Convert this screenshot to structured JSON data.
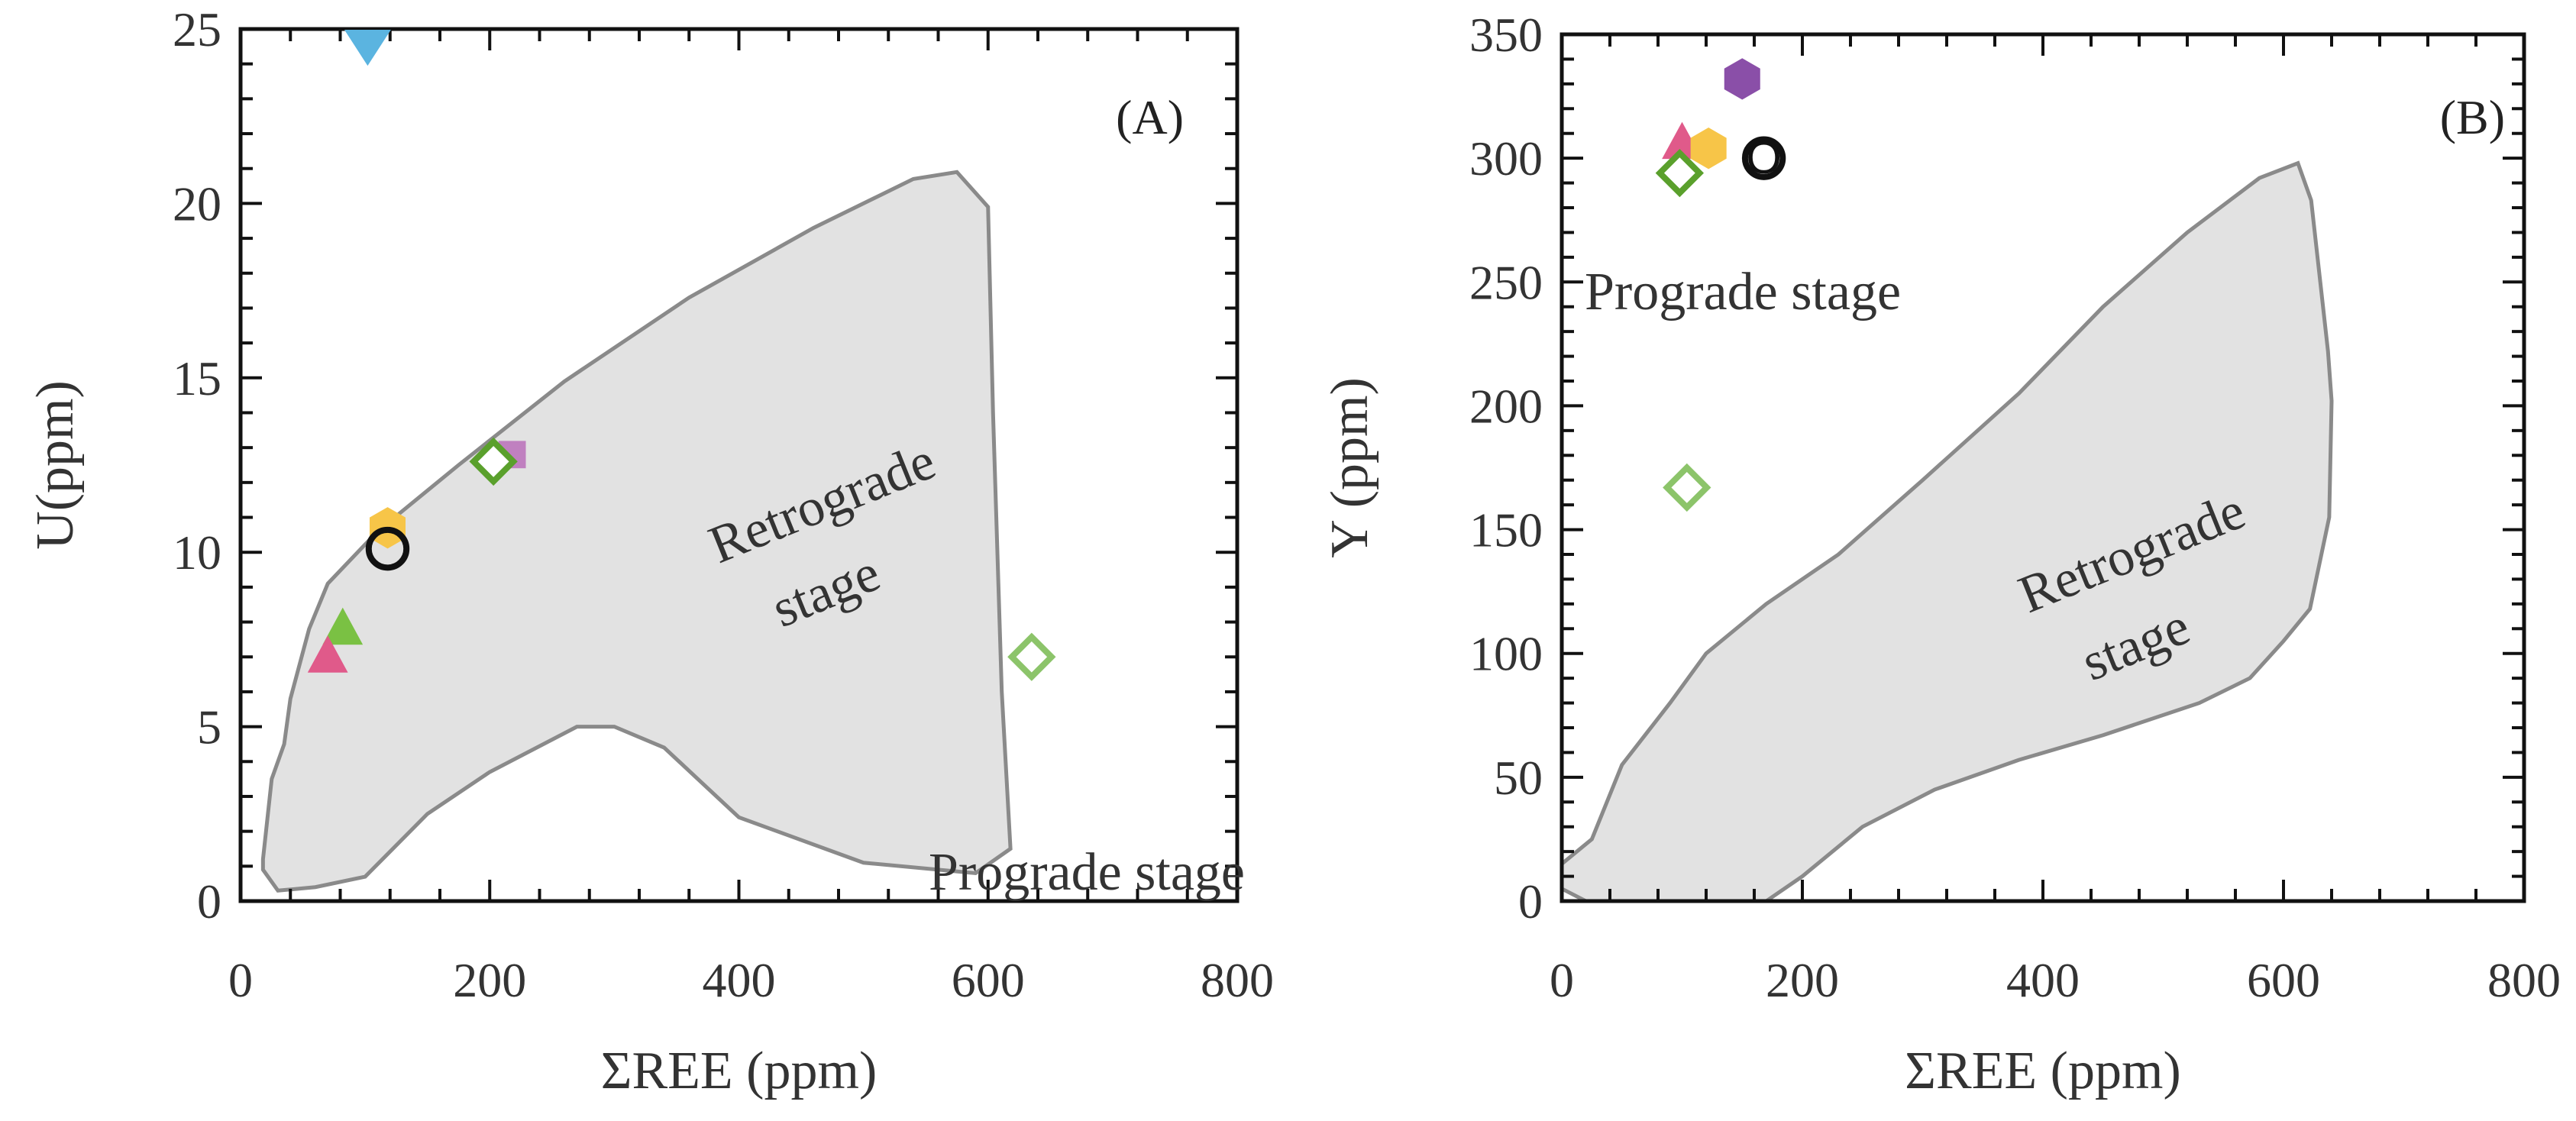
{
  "chart_data": [
    {
      "type": "scatter",
      "panel_label": "(A)",
      "xlabel": "ΣREE (ppm)",
      "ylabel": "U(ppm)",
      "xlim": [
        0,
        800
      ],
      "ylim": [
        0,
        25
      ],
      "xticks": [
        "0",
        "200",
        "400",
        "600",
        "800"
      ],
      "yticks": [
        "0",
        "5",
        "10",
        "15",
        "20",
        "25"
      ],
      "grid": false,
      "regions": [
        {
          "name": "Retrograde stage",
          "label_lines": [
            "Retrograde",
            "stage"
          ],
          "fill": "#e2e2e2",
          "stroke": "#8a8a8a",
          "polygon": [
            [
              18,
              1.2
            ],
            [
              25,
              3.5
            ],
            [
              35,
              4.5
            ],
            [
              40,
              5.8
            ],
            [
              55,
              7.8
            ],
            [
              70,
              9.1
            ],
            [
              110,
              10.6
            ],
            [
              175,
              12.5
            ],
            [
              260,
              14.9
            ],
            [
              360,
              17.3
            ],
            [
              460,
              19.3
            ],
            [
              540,
              20.7
            ],
            [
              575,
              20.9
            ],
            [
              600,
              19.9
            ],
            [
              604,
              14
            ],
            [
              611,
              6
            ],
            [
              618,
              1.5
            ],
            [
              590,
              0.8
            ],
            [
              500,
              1.1
            ],
            [
              400,
              2.4
            ],
            [
              340,
              4.4
            ],
            [
              300,
              5.0
            ],
            [
              270,
              5.0
            ],
            [
              200,
              3.7
            ],
            [
              150,
              2.5
            ],
            [
              100,
              0.7
            ],
            [
              60,
              0.4
            ],
            [
              30,
              0.3
            ],
            [
              18,
              0.9
            ]
          ]
        }
      ],
      "annotations": [
        {
          "text": "Prograde stage",
          "x": 610,
          "y": 0.6
        }
      ],
      "points": [
        {
          "marker": "triangle-down",
          "color": "#5bb4e0",
          "filled": true,
          "x": 102,
          "y": 24.5
        },
        {
          "marker": "hexagon",
          "color": "#f7c548",
          "filled": true,
          "x": 118,
          "y": 10.7
        },
        {
          "marker": "circle",
          "color": "#111111",
          "filled": false,
          "x": 118,
          "y": 10.1
        },
        {
          "marker": "square",
          "color": "#c080c0",
          "filled": true,
          "x": 218,
          "y": 12.8
        },
        {
          "marker": "diamond",
          "color": "#5aa02c",
          "filled": false,
          "x": 203,
          "y": 12.6
        },
        {
          "marker": "triangle",
          "color": "#7ac143",
          "filled": true,
          "x": 82,
          "y": 7.8
        },
        {
          "marker": "triangle",
          "color": "#e05a8a",
          "filled": true,
          "x": 70,
          "y": 7.0
        },
        {
          "marker": "diamond",
          "color": "#8cc46a",
          "filled": false,
          "x": 635,
          "y": 7.0
        }
      ]
    },
    {
      "type": "scatter",
      "panel_label": "(B)",
      "xlabel": "ΣREE (ppm)",
      "ylabel": "Y (ppm)",
      "xlim": [
        0,
        800
      ],
      "ylim": [
        0,
        350
      ],
      "xticks": [
        "0",
        "200",
        "400",
        "600",
        "800"
      ],
      "yticks": [
        "0",
        "50",
        "100",
        "150",
        "200",
        "250",
        "300",
        "350"
      ],
      "grid": false,
      "regions": [
        {
          "name": "Retrograde stage",
          "label_lines": [
            "Retrograde",
            "stage"
          ],
          "fill": "#e2e2e2",
          "stroke": "#8a8a8a",
          "polygon": [
            [
              0,
              15
            ],
            [
              25,
              25
            ],
            [
              50,
              55
            ],
            [
              90,
              80
            ],
            [
              120,
              100
            ],
            [
              170,
              120
            ],
            [
              230,
              140
            ],
            [
              300,
              170
            ],
            [
              380,
              205
            ],
            [
              450,
              240
            ],
            [
              520,
              270
            ],
            [
              580,
              292
            ],
            [
              612,
              298
            ],
            [
              623,
              283
            ],
            [
              637,
              222
            ],
            [
              640,
              202
            ],
            [
              638,
              155
            ],
            [
              622,
              118
            ],
            [
              600,
              105
            ],
            [
              572,
              90
            ],
            [
              530,
              80
            ],
            [
              450,
              67
            ],
            [
              380,
              57
            ],
            [
              310,
              45
            ],
            [
              250,
              30
            ],
            [
              200,
              10
            ],
            [
              170,
              0
            ],
            [
              20,
              0
            ],
            [
              0,
              5
            ]
          ]
        }
      ],
      "annotations": [
        {
          "text": "Prograde stage",
          "x": 20,
          "y": 200
        }
      ],
      "points": [
        {
          "marker": "hexagon",
          "color": "#8a4fa8",
          "filled": true,
          "x": 150,
          "y": 332
        },
        {
          "marker": "triangle",
          "color": "#e05a8a",
          "filled": true,
          "x": 100,
          "y": 306
        },
        {
          "marker": "hexagon",
          "color": "#f7c548",
          "filled": true,
          "x": 122,
          "y": 304
        },
        {
          "marker": "diamond",
          "color": "#5aa02c",
          "filled": false,
          "x": 98,
          "y": 294
        },
        {
          "marker": "circle",
          "color": "#111111",
          "filled": false,
          "x": 168,
          "y": 300,
          "label": "O"
        },
        {
          "marker": "diamond",
          "color": "#8cc46a",
          "filled": false,
          "x": 104,
          "y": 167
        }
      ]
    }
  ]
}
